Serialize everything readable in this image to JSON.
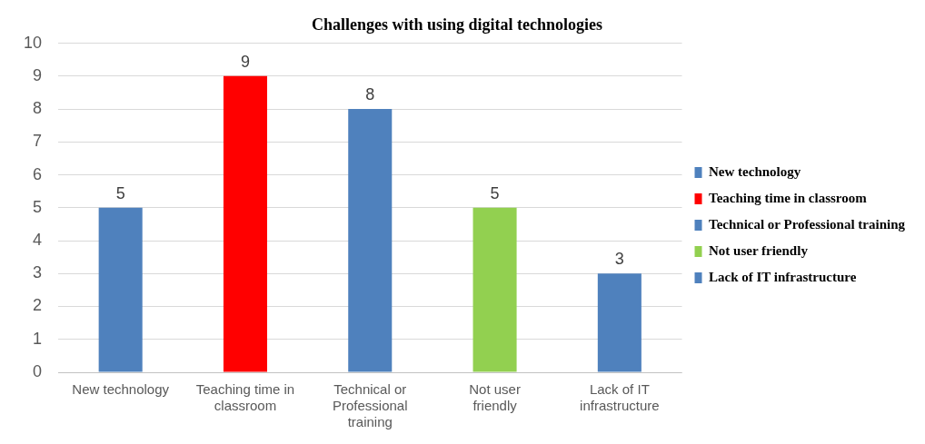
{
  "chart_data": {
    "type": "bar",
    "title": "Challenges with using digital technologies",
    "categories": [
      "New technology",
      "Teaching time in classroom",
      "Technical or Professional training",
      "Not user friendly",
      "Lack of IT infrastructure"
    ],
    "series": [
      {
        "name": "New technology",
        "color": "#4f81bd",
        "values": [
          5,
          null,
          null,
          null,
          null
        ]
      },
      {
        "name": "Teaching time in classroom",
        "color": "#ff0000",
        "values": [
          null,
          9,
          null,
          null,
          null
        ]
      },
      {
        "name": "Technical or Professional training",
        "color": "#4f81bd",
        "values": [
          null,
          null,
          8,
          null,
          null
        ]
      },
      {
        "name": "Not user friendly",
        "color": "#92d050",
        "values": [
          null,
          null,
          null,
          5,
          null
        ]
      },
      {
        "name": "Lack of IT infrastructure",
        "color": "#4f81bd",
        "values": [
          null,
          null,
          null,
          null,
          3
        ]
      }
    ],
    "ylim": [
      0,
      10
    ],
    "yticks": [
      0,
      1,
      2,
      3,
      4,
      5,
      6,
      7,
      8,
      9,
      10
    ],
    "grid": "y",
    "legend": "right",
    "data_labels": true
  }
}
